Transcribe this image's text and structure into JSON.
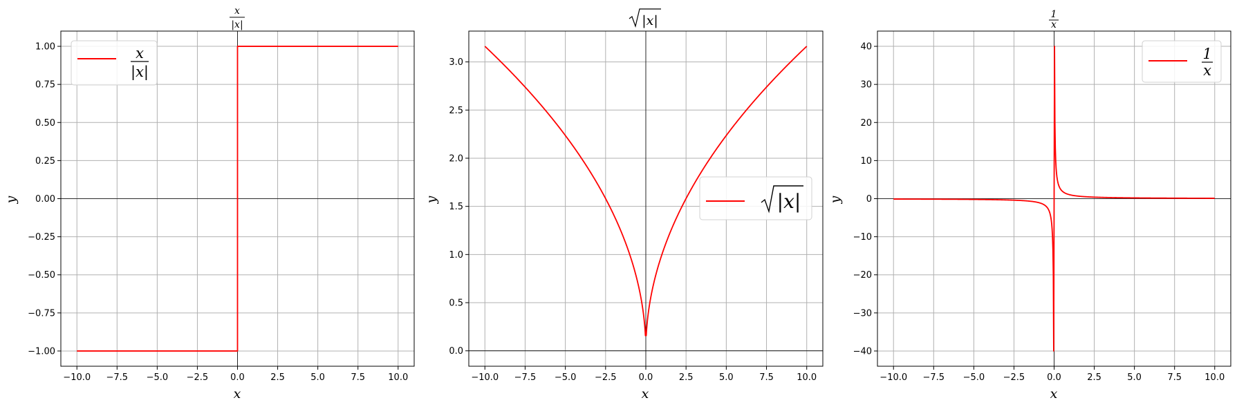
{
  "chart_data": [
    {
      "type": "line",
      "title": "x/|x|",
      "title_parts": {
        "numerator": "x",
        "denominator": "|x|"
      },
      "xlabel": "x",
      "ylabel": "y",
      "xlim": [
        -11.0,
        11.0
      ],
      "ylim": [
        -1.1,
        1.1
      ],
      "xticks": [
        -10.0,
        -7.5,
        -5.0,
        -2.5,
        0.0,
        2.5,
        5.0,
        7.5,
        10.0
      ],
      "xtick_labels": [
        "−10.0",
        "−7.5",
        "−5.0",
        "−2.5",
        "0.0",
        "2.5",
        "5.0",
        "7.5",
        "10.0"
      ],
      "yticks": [
        -1.0,
        -0.75,
        -0.5,
        -0.25,
        0.0,
        0.25,
        0.5,
        0.75,
        1.0
      ],
      "ytick_labels": [
        "−1.00",
        "−0.75",
        "−0.50",
        "−0.25",
        "0.00",
        "0.25",
        "0.50",
        "0.75",
        "1.00"
      ],
      "grid": true,
      "zero_lines": true,
      "legend_loc": "upper left",
      "series": [
        {
          "name": "x/|x|",
          "color": "#ff0000",
          "function": "sign",
          "x_range": [
            -10,
            10
          ]
        }
      ]
    },
    {
      "type": "line",
      "title": "√|x|",
      "title_parts": {
        "radicand": "|x|"
      },
      "xlabel": "x",
      "ylabel": "y",
      "xlim": [
        -11.0,
        11.0
      ],
      "ylim": [
        -0.16,
        3.32
      ],
      "xticks": [
        -10.0,
        -7.5,
        -5.0,
        -2.5,
        0.0,
        2.5,
        5.0,
        7.5,
        10.0
      ],
      "xtick_labels": [
        "−10.0",
        "−7.5",
        "−5.0",
        "−2.5",
        "0.0",
        "2.5",
        "5.0",
        "7.5",
        "10.0"
      ],
      "yticks": [
        0.0,
        0.5,
        1.0,
        1.5,
        2.0,
        2.5,
        3.0
      ],
      "ytick_labels": [
        "0.0",
        "0.5",
        "1.0",
        "1.5",
        "2.0",
        "2.5",
        "3.0"
      ],
      "grid": true,
      "zero_lines": true,
      "legend_loc": "center right",
      "series": [
        {
          "name": "√|x|",
          "color": "#ff0000",
          "function": "sqrt_abs",
          "x_range": [
            -10,
            10
          ],
          "min_abs_x": 0.025
        }
      ]
    },
    {
      "type": "line",
      "title": "1/x",
      "title_parts": {
        "numerator": "1",
        "denominator": "x"
      },
      "xlabel": "x",
      "ylabel": "y",
      "xlim": [
        -11.0,
        11.0
      ],
      "ylim": [
        -44,
        44
      ],
      "xticks": [
        -10.0,
        -7.5,
        -5.0,
        -2.5,
        0.0,
        2.5,
        5.0,
        7.5,
        10.0
      ],
      "xtick_labels": [
        "−10.0",
        "−7.5",
        "−5.0",
        "−2.5",
        "0.0",
        "2.5",
        "5.0",
        "7.5",
        "10.0"
      ],
      "yticks": [
        -40,
        -30,
        -20,
        -10,
        0,
        10,
        20,
        30,
        40
      ],
      "ytick_labels": [
        "−40",
        "−30",
        "−20",
        "−10",
        "0",
        "10",
        "20",
        "30",
        "40"
      ],
      "grid": true,
      "zero_lines": true,
      "legend_loc": "upper right",
      "series": [
        {
          "name": "1/x",
          "color": "#ff0000",
          "function": "reciprocal",
          "x_range": [
            -10,
            10
          ],
          "min_abs_x": 0.025
        }
      ]
    }
  ]
}
